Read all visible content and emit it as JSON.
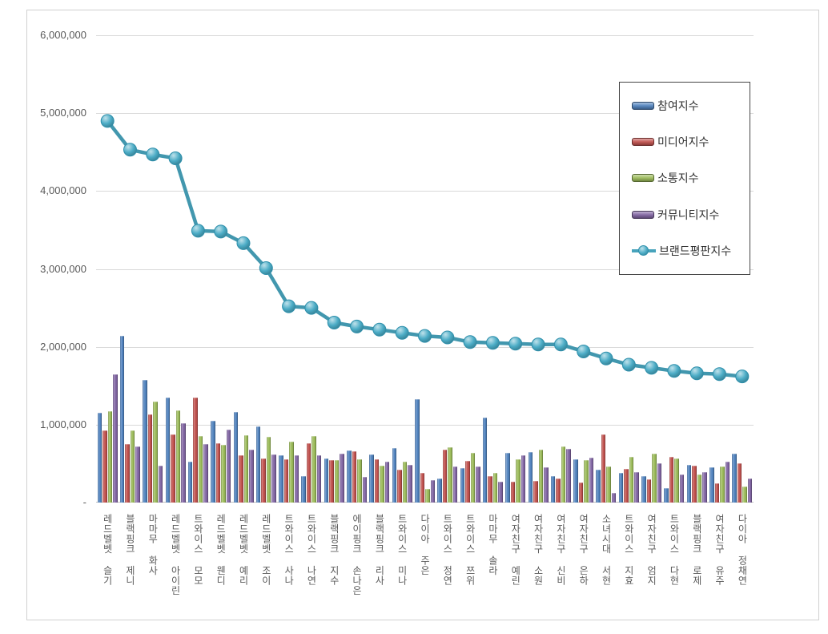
{
  "chart_data": {
    "type": "bar",
    "subtype": "grouped-bars-with-line",
    "title": "",
    "xlabel": "",
    "ylabel": "",
    "grid": true,
    "legend_position": "right",
    "categories": [
      "레드벨벳 슬기",
      "블랙핑크 제니",
      "마마무 화사",
      "레드벨벳 아이린",
      "트와이스 모모",
      "레드벨벳 웬디",
      "레드벨벳 예리",
      "레드벨벳 조이",
      "트와이스 사나",
      "트와이스 나연",
      "블랙핑크 지수",
      "에이핑크 손나은",
      "블랙핑크 리사",
      "트와이스 미나",
      "다이아 주은",
      "트와이스 정연",
      "트와이스 쯔위",
      "마마무 솔라",
      "여자친구 예린",
      "여자친구 소원",
      "여자친구 신비",
      "여자친구 은하",
      "소녀시대 서현",
      "트와이스 지효",
      "여자친구 엄지",
      "트와이스 다현",
      "블랙핑크 로제",
      "여자친구 유주",
      "다이아 정채연"
    ],
    "series": [
      {
        "name": "참여지수",
        "type": "bar",
        "color": "#4F81BD",
        "values": [
          1150000,
          2140000,
          1570000,
          1350000,
          530000,
          1050000,
          1160000,
          980000,
          610000,
          340000,
          570000,
          670000,
          620000,
          700000,
          1330000,
          310000,
          440000,
          1090000,
          640000,
          650000,
          340000,
          560000,
          420000,
          380000,
          340000,
          190000,
          480000,
          450000,
          630000
        ]
      },
      {
        "name": "미디어지수",
        "type": "bar",
        "color": "#C0504D",
        "values": [
          930000,
          750000,
          1130000,
          870000,
          1350000,
          760000,
          610000,
          570000,
          560000,
          760000,
          550000,
          660000,
          560000,
          420000,
          380000,
          680000,
          540000,
          340000,
          270000,
          280000,
          310000,
          260000,
          870000,
          430000,
          300000,
          590000,
          470000,
          250000,
          500000
        ]
      },
      {
        "name": "소통지수",
        "type": "bar",
        "color": "#9BBB59",
        "values": [
          1170000,
          930000,
          1300000,
          1180000,
          850000,
          740000,
          860000,
          840000,
          780000,
          850000,
          550000,
          560000,
          470000,
          520000,
          180000,
          710000,
          640000,
          380000,
          560000,
          680000,
          720000,
          550000,
          460000,
          590000,
          630000,
          570000,
          360000,
          460000,
          210000
        ]
      },
      {
        "name": "커뮤니티지수",
        "type": "bar",
        "color": "#8064A2",
        "values": [
          1650000,
          720000,
          470000,
          1020000,
          750000,
          940000,
          680000,
          620000,
          610000,
          610000,
          630000,
          330000,
          520000,
          480000,
          290000,
          460000,
          460000,
          270000,
          610000,
          450000,
          690000,
          580000,
          120000,
          390000,
          500000,
          360000,
          390000,
          520000,
          310000
        ]
      },
      {
        "name": "브랜드평판지수",
        "type": "line",
        "color": "#4BACC6",
        "marker_edge": "#2E8FAB",
        "values": [
          4900000,
          4530000,
          4470000,
          4420000,
          3490000,
          3480000,
          3330000,
          3010000,
          2520000,
          2500000,
          2310000,
          2260000,
          2220000,
          2180000,
          2140000,
          2120000,
          2060000,
          2050000,
          2040000,
          2030000,
          2030000,
          1940000,
          1850000,
          1770000,
          1730000,
          1690000,
          1660000,
          1650000,
          1620000
        ]
      }
    ],
    "y_axis": {
      "min": 0,
      "max": 6000000,
      "step": 1000000,
      "tick_labels": [
        "-",
        "1,000,000",
        "2,000,000",
        "3,000,000",
        "4,000,000",
        "5,000,000",
        "6,000,000"
      ]
    }
  }
}
